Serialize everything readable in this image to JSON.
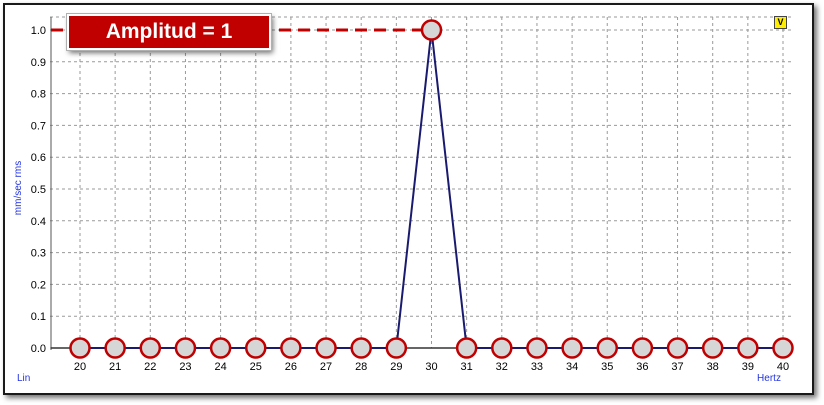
{
  "chart_data": {
    "type": "line",
    "x": [
      20,
      21,
      22,
      23,
      24,
      25,
      26,
      27,
      28,
      29,
      30,
      31,
      32,
      33,
      34,
      35,
      36,
      37,
      38,
      39,
      40
    ],
    "values": [
      0,
      0,
      0,
      0,
      0,
      0,
      0,
      0,
      0,
      0,
      1,
      0,
      0,
      0,
      0,
      0,
      0,
      0,
      0,
      0,
      0
    ],
    "xticks": [
      "20",
      "21",
      "22",
      "23",
      "24",
      "25",
      "26",
      "27",
      "28",
      "29",
      "30",
      "31",
      "32",
      "33",
      "34",
      "35",
      "36",
      "37",
      "38",
      "39",
      "40"
    ],
    "yticks": [
      "0.0",
      "0.1",
      "0.2",
      "0.3",
      "0.4",
      "0.5",
      "0.6",
      "0.7",
      "0.8",
      "0.9",
      "1.0"
    ],
    "xlim": [
      20,
      40
    ],
    "ylim": [
      0,
      1
    ],
    "ylabel": "mm/sec rms",
    "xunit": "Hertz",
    "scale_label": "Lin",
    "annotation": "Amplitud = 1",
    "marker_label": "V",
    "grid": true,
    "colors": {
      "line": "#1a1a6e",
      "marker_fill": "#d6d6d6",
      "marker_edge": "#c00000",
      "reference_line": "#c00000",
      "badge": "#c00000",
      "axis_text_blue": "#2233dd"
    }
  }
}
